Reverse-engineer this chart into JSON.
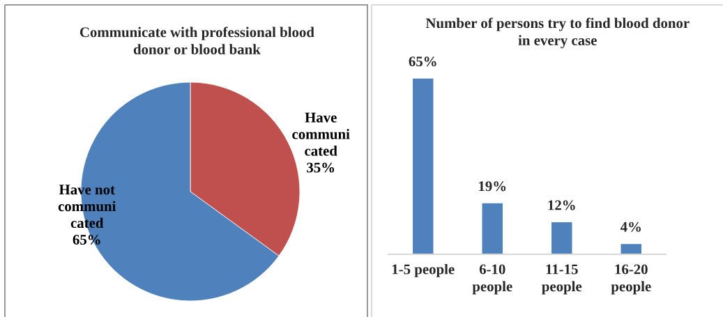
{
  "chart_data": [
    {
      "type": "pie",
      "title": "Communicate with professional blood\ndonor or blood bank",
      "categories": [
        "Have\ncommuni\ncated",
        "Have not\ncommuni\ncated"
      ],
      "values": [
        35,
        65
      ],
      "colors": [
        "#c0504d",
        "#4f81bd"
      ],
      "value_labels": [
        "35%",
        "65%"
      ]
    },
    {
      "type": "bar",
      "title": "Number of persons try to find blood donor\nin every case",
      "categories": [
        "1-5 people",
        "6-10\npeople",
        "11-15\npeople",
        "16-20\npeople"
      ],
      "values": [
        65,
        19,
        12,
        4
      ],
      "color": "#4f81bd",
      "value_labels": [
        "65%",
        "19%",
        "12%",
        "4%"
      ]
    }
  ]
}
